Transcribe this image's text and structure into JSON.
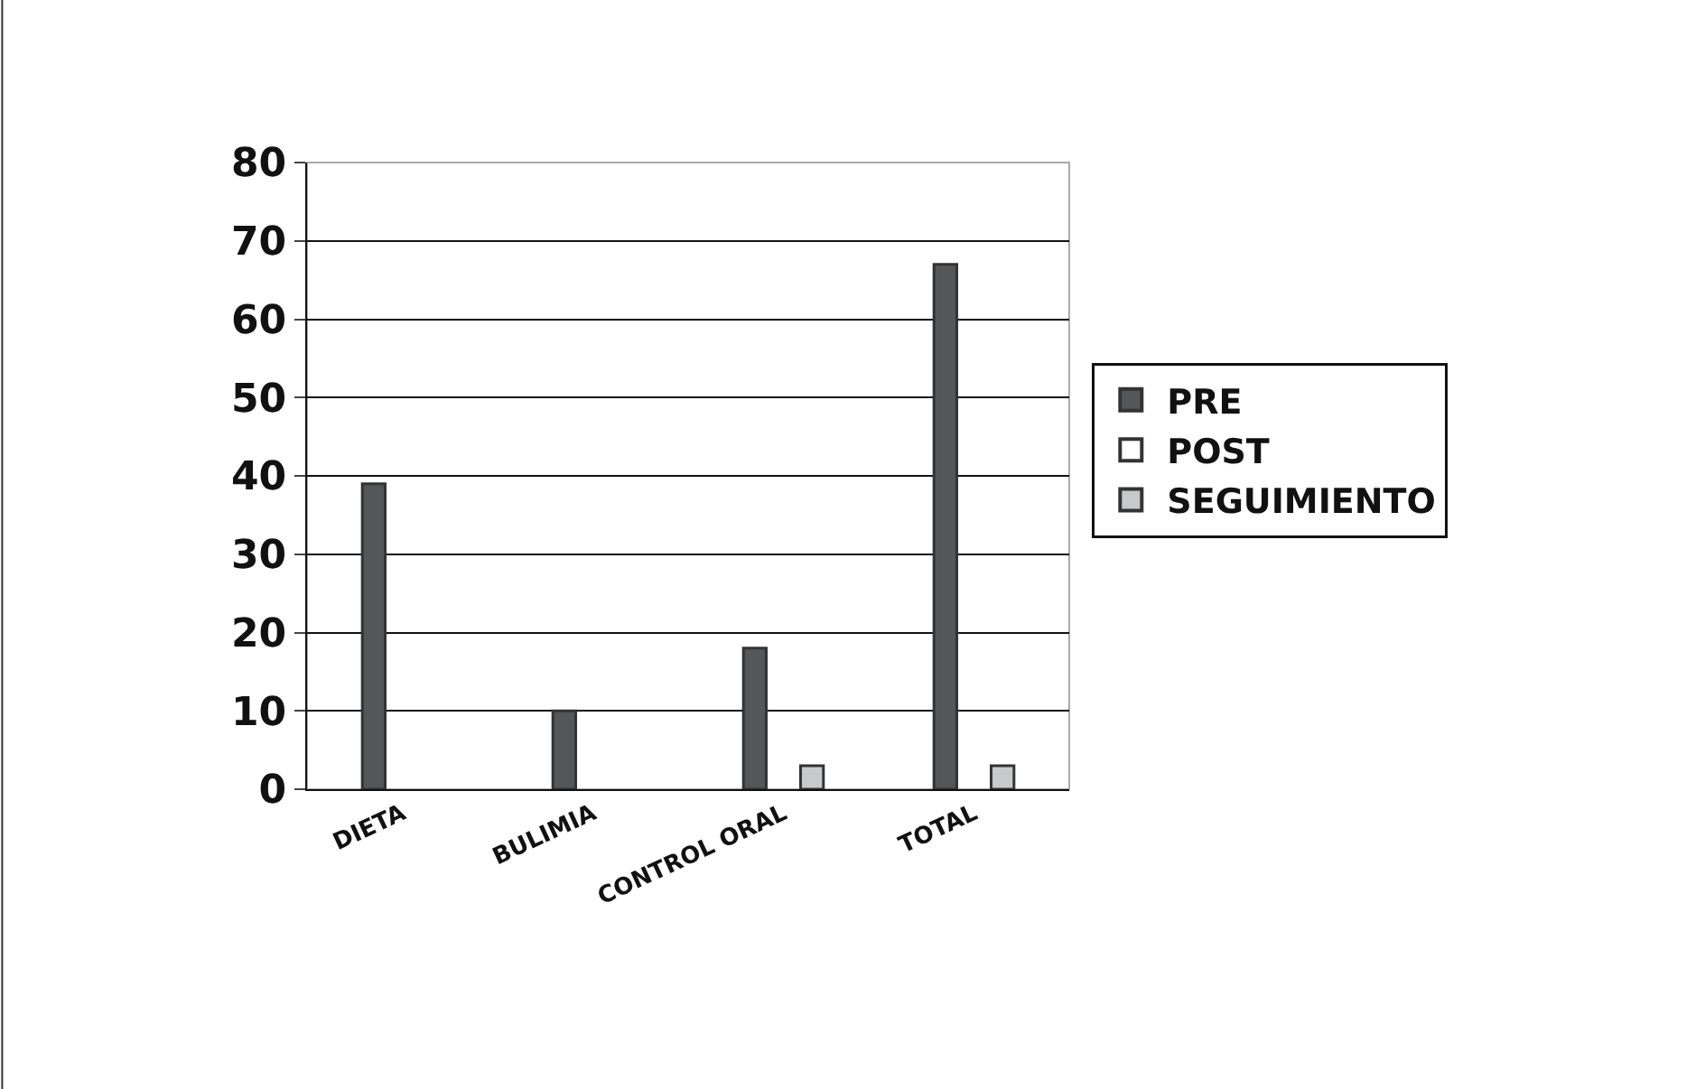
{
  "chart_data": {
    "type": "bar",
    "categories": [
      "DIETA",
      "BULIMIA",
      "CONTROL ORAL",
      "TOTAL"
    ],
    "series": [
      {
        "name": "PRE",
        "color": "#555658",
        "values": [
          39,
          10,
          18,
          67
        ]
      },
      {
        "name": "POST",
        "color": "#ffffff",
        "values": [
          null,
          null,
          null,
          null
        ]
      },
      {
        "name": "SEGUIMIENTO",
        "color": "#c8c9ca",
        "values": [
          null,
          null,
          3,
          3
        ]
      }
    ],
    "ylim": [
      0,
      80
    ],
    "yticks": [
      0,
      10,
      20,
      30,
      40,
      50,
      60,
      70,
      80
    ],
    "grid": "y",
    "legend": "right"
  }
}
